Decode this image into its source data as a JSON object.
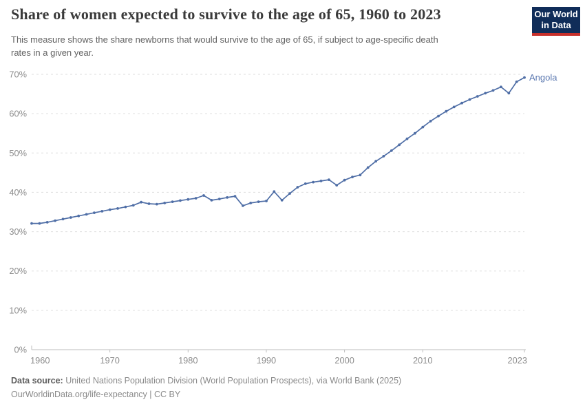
{
  "header": {
    "title": "Share of women expected to survive to the age of 65, 1960 to 2023",
    "subtitle_line1": "This measure shows the share newborns that would survive to the age of 65, if subject to age-specific death",
    "subtitle_line2": "rates in a given year.",
    "logo": {
      "line1": "Our World",
      "line2": "in Data",
      "bg_color": "#102D59",
      "accent_color": "#C7302B"
    }
  },
  "chart_data": {
    "type": "line",
    "title": "Share of women expected to survive to the age of 65, 1960 to 2023",
    "xlabel": "",
    "ylabel": "",
    "x": [
      1960,
      1961,
      1962,
      1963,
      1964,
      1965,
      1966,
      1967,
      1968,
      1969,
      1970,
      1971,
      1972,
      1973,
      1974,
      1975,
      1976,
      1977,
      1978,
      1979,
      1980,
      1981,
      1982,
      1983,
      1984,
      1985,
      1986,
      1987,
      1988,
      1989,
      1990,
      1991,
      1992,
      1993,
      1994,
      1995,
      1996,
      1997,
      1998,
      1999,
      2000,
      2001,
      2002,
      2003,
      2004,
      2005,
      2006,
      2007,
      2008,
      2009,
      2010,
      2011,
      2012,
      2013,
      2014,
      2015,
      2016,
      2017,
      2018,
      2019,
      2020,
      2021,
      2022,
      2023
    ],
    "series": [
      {
        "name": "Angola",
        "color": "#4F6EA6",
        "label_color": "#5B78B0",
        "values": [
          32.1,
          32.1,
          32.4,
          32.8,
          33.2,
          33.6,
          34.0,
          34.4,
          34.8,
          35.2,
          35.6,
          35.9,
          36.3,
          36.7,
          37.5,
          37.1,
          37.0,
          37.3,
          37.6,
          37.9,
          38.2,
          38.5,
          39.2,
          38.0,
          38.3,
          38.7,
          39.0,
          36.6,
          37.3,
          37.6,
          37.8,
          40.2,
          38.0,
          39.7,
          41.3,
          42.2,
          42.6,
          42.9,
          43.2,
          41.8,
          43.1,
          43.9,
          44.4,
          46.3,
          47.9,
          49.2,
          50.6,
          52.1,
          53.6,
          55.0,
          56.6,
          58.1,
          59.4,
          60.6,
          61.7,
          62.7,
          63.6,
          64.4,
          65.2,
          65.9,
          66.8,
          65.2,
          68.1,
          69.2
        ]
      }
    ],
    "ylim": [
      0,
      70
    ],
    "yticks": [
      0,
      10,
      20,
      30,
      40,
      50,
      60,
      70
    ],
    "ytick_labels": [
      "0%",
      "10%",
      "20%",
      "30%",
      "40%",
      "50%",
      "60%",
      "70%"
    ],
    "xticks": [
      1960,
      1970,
      1980,
      1990,
      2000,
      2010,
      2023
    ],
    "xtick_labels": [
      "1960",
      "1970",
      "1980",
      "1990",
      "2000",
      "2010",
      "2023"
    ],
    "grid": "dashed horizontal gridlines",
    "legend": "end-of-line entity label"
  },
  "footer": {
    "source_label": "Data source:",
    "source_text": " United Nations Population Division (World Population Prospects), via World Bank (2025)",
    "license_text": "OurWorldinData.org/life-expectancy | CC BY"
  }
}
